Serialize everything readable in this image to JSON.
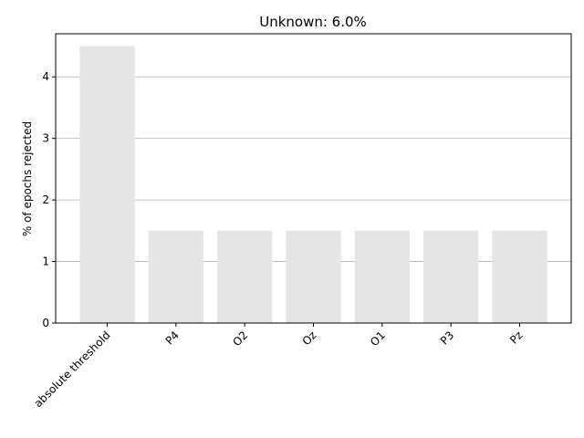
{
  "chart_data": {
    "type": "bar",
    "title": "Unknown: 6.0%",
    "xlabel": "",
    "ylabel": "% of epochs rejected",
    "categories": [
      "absolute threshold",
      "P4",
      "O2",
      "Oz",
      "O1",
      "P3",
      "Pz"
    ],
    "values": [
      4.5,
      1.5,
      1.5,
      1.5,
      1.5,
      1.5,
      1.5
    ],
    "ylim": [
      0,
      4.7
    ],
    "yticks": [
      0,
      1,
      2,
      3,
      4
    ],
    "grid": "y",
    "bar_color": "#e5e5e5",
    "grid_color": "#b0b0b0"
  }
}
